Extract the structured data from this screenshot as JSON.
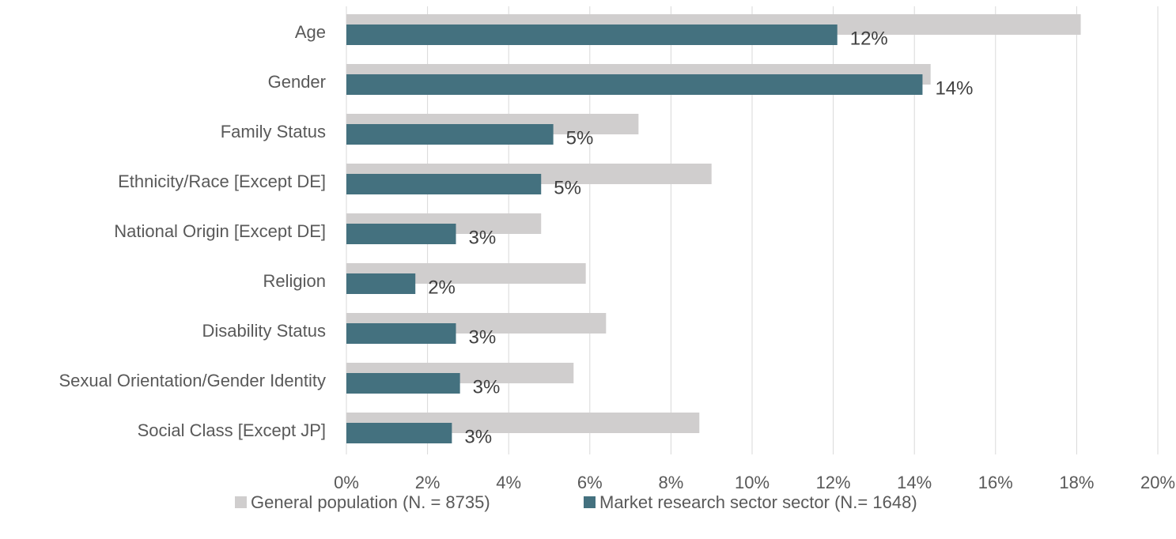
{
  "chart_data": {
    "type": "bar",
    "orientation": "horizontal",
    "categories": [
      "Age",
      "Gender",
      "Family Status",
      "Ethnicity/Race [Except DE]",
      "National Origin [Except DE]",
      "Religion",
      "Disability Status",
      "Sexual Orientation/Gender Identity",
      "Social Class [Except JP]"
    ],
    "series": [
      {
        "name": "General population (N. = 8735)",
        "color": "#d0cece",
        "values": [
          18.1,
          14.4,
          7.2,
          9.0,
          4.8,
          5.9,
          6.4,
          5.6,
          8.7
        ]
      },
      {
        "name": "Market research sector sector (N.= 1648)",
        "color": "#44717f",
        "values": [
          12.1,
          14.2,
          5.1,
          4.8,
          2.7,
          1.7,
          2.7,
          2.8,
          2.6
        ],
        "value_labels": [
          "12%",
          "14%",
          "5%",
          "5%",
          "3%",
          "2%",
          "3%",
          "3%",
          "3%"
        ]
      }
    ],
    "xlim": [
      0,
      20
    ],
    "xticks": [
      {
        "value": 0,
        "label": "0%"
      },
      {
        "value": 2,
        "label": "2%"
      },
      {
        "value": 4,
        "label": "4%"
      },
      {
        "value": 6,
        "label": "6%"
      },
      {
        "value": 8,
        "label": "8%"
      },
      {
        "value": 10,
        "label": "10%"
      },
      {
        "value": 12,
        "label": "12%"
      },
      {
        "value": 14,
        "label": "14%"
      },
      {
        "value": 16,
        "label": "16%"
      },
      {
        "value": 18,
        "label": "18%"
      },
      {
        "value": 20,
        "label": "20%"
      }
    ],
    "grid": true,
    "legend": "bottom"
  }
}
